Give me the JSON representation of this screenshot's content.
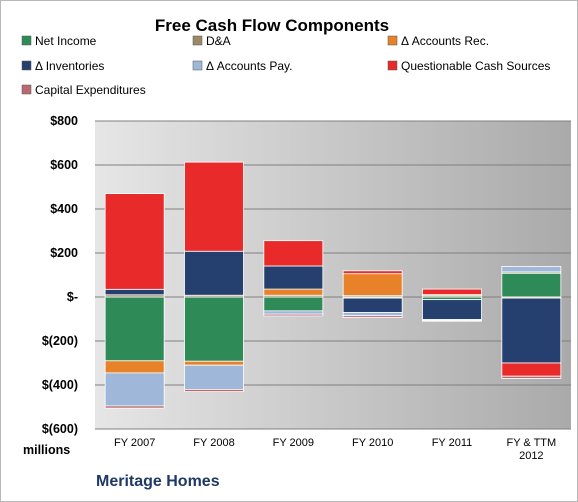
{
  "chart_data": {
    "type": "bar",
    "stacked": true,
    "title": "Free Cash Flow Components",
    "unit_label": "millions",
    "company": "Meritage Homes",
    "legend_position": "top",
    "grid": true,
    "ylim": [
      -600,
      800
    ],
    "yticks": [
      {
        "value": 800,
        "label": "$800"
      },
      {
        "value": 600,
        "label": "$600"
      },
      {
        "value": 400,
        "label": "$400"
      },
      {
        "value": 200,
        "label": "$200"
      },
      {
        "value": 0,
        "label": "$-"
      },
      {
        "value": -200,
        "label": "$(200)"
      },
      {
        "value": -400,
        "label": "$(400)"
      },
      {
        "value": -600,
        "label": "$(600)"
      }
    ],
    "categories": [
      "FY 2007",
      "FY 2008",
      "FY 2009",
      "FY 2010",
      "FY 2011",
      "FY & TTM\n2012"
    ],
    "series": [
      {
        "name": "Net Income",
        "color": "#2e8b57",
        "values": [
          -290,
          -292,
          -63,
          -5,
          -12,
          108
        ]
      },
      {
        "name": "D&A",
        "color": "#9a8a6a",
        "values": [
          10,
          8,
          8,
          6,
          6,
          6
        ]
      },
      {
        "name": "Δ Accounts Rec.",
        "color": "#e8822a",
        "values": [
          -55,
          -18,
          28,
          100,
          5,
          -5
        ]
      },
      {
        "name": "Δ Inventories",
        "color": "#25406e",
        "values": [
          25,
          200,
          105,
          -65,
          -90,
          -295
        ]
      },
      {
        "name": "Δ Accounts Pay.",
        "color": "#9fb7d9",
        "values": [
          -150,
          -110,
          -15,
          -15,
          -5,
          25
        ]
      },
      {
        "name": "Questionable Cash Sources",
        "color": "#e82a2a",
        "values": [
          435,
          405,
          115,
          13,
          25,
          -60
        ]
      },
      {
        "name": "Capital Expenditures",
        "color": "#b86a70",
        "values": [
          -10,
          -10,
          -8,
          -8,
          -3,
          -10
        ]
      }
    ]
  }
}
